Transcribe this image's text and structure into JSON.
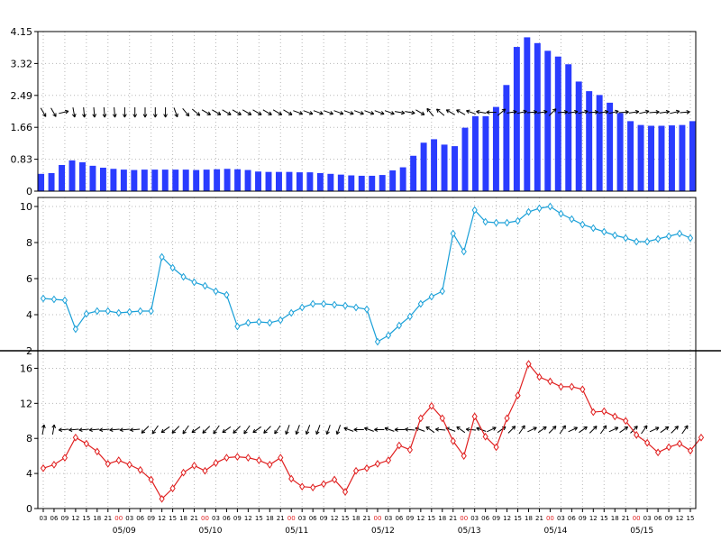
{
  "chart_data": [
    {
      "type": "bar",
      "ylim": [
        0,
        4.15
      ],
      "yticks": [
        "0",
        "0.83",
        "1.66",
        "2.49",
        "3.32",
        "4.15"
      ],
      "bar_color": "#2a3cff",
      "values": [
        0.45,
        0.47,
        0.68,
        0.8,
        0.75,
        0.66,
        0.61,
        0.58,
        0.56,
        0.55,
        0.56,
        0.56,
        0.56,
        0.56,
        0.56,
        0.55,
        0.56,
        0.57,
        0.58,
        0.57,
        0.55,
        0.51,
        0.5,
        0.5,
        0.5,
        0.49,
        0.49,
        0.47,
        0.45,
        0.43,
        0.41,
        0.4,
        0.4,
        0.42,
        0.54,
        0.62,
        0.92,
        1.26,
        1.35,
        1.21,
        1.17,
        1.65,
        1.95,
        1.95,
        2.19,
        2.76,
        3.75,
        4.0,
        3.85,
        3.65,
        3.5,
        3.3,
        2.85,
        2.6,
        2.5,
        2.3,
        2.03,
        1.82,
        1.72,
        1.7,
        1.7,
        1.71,
        1.72,
        1.82
      ],
      "wind_arrows_row_y": 2.05,
      "wind_arrow_directions_deg": [
        300,
        300,
        null,
        280,
        275,
        275,
        275,
        275,
        270,
        270,
        270,
        270,
        270,
        290,
        310,
        320,
        330,
        330,
        330,
        330,
        330,
        330,
        330,
        330,
        330,
        340,
        340,
        340,
        340,
        340,
        340,
        340,
        340,
        340,
        340,
        350,
        350,
        330,
        130,
        140,
        150,
        150,
        160,
        170,
        180,
        null,
        null,
        null,
        null,
        null,
        null,
        null,
        null,
        null,
        null,
        null,
        null,
        null,
        null,
        null,
        null,
        null,
        null,
        null
      ]
    },
    {
      "type": "line",
      "ylim": [
        2,
        10.5
      ],
      "yticks": [
        "2",
        "4",
        "6",
        "8",
        "10"
      ],
      "line_color": "#1aa0d8",
      "values": [
        4.9,
        4.85,
        4.8,
        3.2,
        4.05,
        4.2,
        4.2,
        4.1,
        4.15,
        4.2,
        4.2,
        7.2,
        6.6,
        6.1,
        5.8,
        5.6,
        5.3,
        5.1,
        3.35,
        3.55,
        3.6,
        3.55,
        3.7,
        4.1,
        4.4,
        4.6,
        4.6,
        4.55,
        4.5,
        4.4,
        4.3,
        2.5,
        2.85,
        3.4,
        3.9,
        4.6,
        5.0,
        5.3,
        8.5,
        7.5,
        9.8,
        9.15,
        9.1,
        9.1,
        9.2,
        9.7,
        9.9,
        10.0,
        9.6,
        9.3,
        9.0,
        8.8,
        8.6,
        8.4,
        8.25,
        8.05,
        8.05,
        8.2,
        8.35,
        8.5,
        8.25
      ]
    },
    {
      "type": "line",
      "ylim": [
        0,
        18
      ],
      "yticks": [
        "0",
        "4",
        "8",
        "12",
        "16"
      ],
      "line_color": "#e02020",
      "values": [
        4.6,
        5.0,
        5.8,
        8.1,
        7.4,
        6.5,
        5.1,
        5.5,
        5.0,
        4.4,
        3.3,
        1.1,
        2.3,
        4.1,
        4.9,
        4.3,
        5.2,
        5.8,
        5.9,
        5.8,
        5.5,
        5.0,
        5.8,
        3.4,
        2.5,
        2.4,
        2.8,
        3.3,
        1.9,
        4.3,
        4.6,
        5.1,
        5.5,
        7.2,
        6.7,
        10.3,
        11.7,
        10.3,
        7.7,
        6.0,
        10.5,
        8.2,
        7.0,
        10.3,
        12.9,
        16.5,
        15.0,
        14.5,
        13.9,
        13.9,
        13.6,
        11.0,
        11.1,
        10.5,
        10.0,
        8.4,
        7.5,
        6.4,
        7.0,
        7.4,
        6.6,
        8.1
      ],
      "wind_arrows_row_y": 9.0
    }
  ],
  "x_axis": {
    "hour_ticks": [
      "03",
      "06",
      "09",
      "12",
      "15",
      "18",
      "21",
      "00",
      "03",
      "06",
      "09",
      "12",
      "15",
      "18",
      "21",
      "00",
      "03",
      "06",
      "09",
      "12",
      "15",
      "18",
      "21",
      "00",
      "03",
      "06",
      "09",
      "12",
      "15",
      "18",
      "21",
      "00",
      "03",
      "06",
      "09",
      "12",
      "15",
      "18",
      "21",
      "00",
      "03",
      "06",
      "09",
      "12",
      "15",
      "18",
      "21",
      "00",
      "03",
      "06",
      "09",
      "12",
      "15",
      "18",
      "21",
      "00",
      "03",
      "06",
      "09",
      "12",
      "15"
    ],
    "midnight_color": "#e02020",
    "date_labels": [
      "05/09",
      "05/10",
      "05/11",
      "05/12",
      "05/13",
      "05/14",
      "05/15"
    ]
  }
}
